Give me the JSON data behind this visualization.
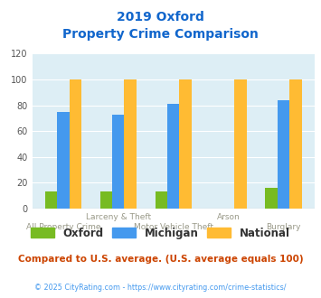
{
  "title_line1": "2019 Oxford",
  "title_line2": "Property Crime Comparison",
  "categories": [
    "All Property Crime",
    "Larceny & Theft",
    "Motor Vehicle Theft",
    "Arson",
    "Burglary"
  ],
  "x_labels_line1": [
    "",
    "Larceny & Theft",
    "",
    "Arson",
    ""
  ],
  "x_labels_line2": [
    "All Property Crime",
    "",
    "Motor Vehicle Theft",
    "",
    "Burglary"
  ],
  "oxford_values": [
    13,
    13,
    13,
    0,
    16
  ],
  "michigan_values": [
    75,
    73,
    81,
    0,
    84
  ],
  "national_values": [
    100,
    100,
    100,
    100,
    100
  ],
  "oxford_color": "#77bb22",
  "michigan_color": "#4499ee",
  "national_color": "#ffbb33",
  "ylim": [
    0,
    120
  ],
  "yticks": [
    0,
    20,
    40,
    60,
    80,
    100,
    120
  ],
  "plot_bg_color": "#ddeef5",
  "title_color": "#1166cc",
  "footer_text": "Compared to U.S. average. (U.S. average equals 100)",
  "footer_color": "#cc4400",
  "copyright_text": "© 2025 CityRating.com - https://www.cityrating.com/crime-statistics/",
  "copyright_color": "#4499ee",
  "legend_labels": [
    "Oxford",
    "Michigan",
    "National"
  ],
  "bar_width": 0.22
}
